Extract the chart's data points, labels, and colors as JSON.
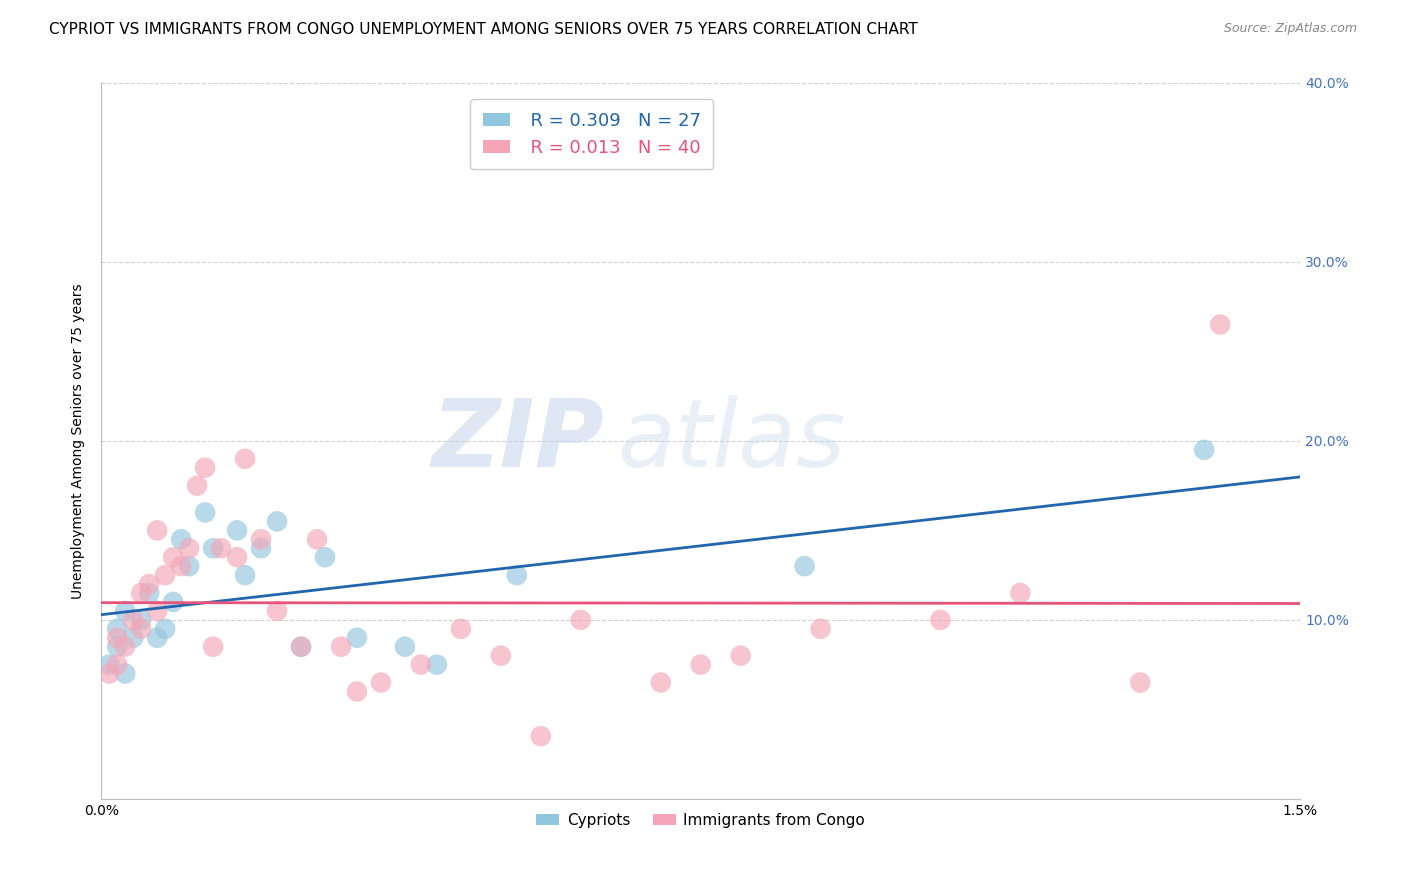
{
  "title": "CYPRIOT VS IMMIGRANTS FROM CONGO UNEMPLOYMENT AMONG SENIORS OVER 75 YEARS CORRELATION CHART",
  "source": "Source: ZipAtlas.com",
  "ylabel": "Unemployment Among Seniors over 75 years",
  "xmin": 0.0,
  "xmax": 1.5,
  "ymin": 0.0,
  "ymax": 40.0,
  "legend_r1": "R = 0.309",
  "legend_n1": "N = 27",
  "legend_r2": "R = 0.013",
  "legend_n2": "N = 40",
  "color_blue": "#92c5de",
  "color_pink": "#f4a6b8",
  "color_blue_line": "#2166ac",
  "color_pink_line": "#e8537a",
  "color_right_axis": "#4472C4",
  "watermark_zip": "ZIP",
  "watermark_atlas": "atlas",
  "cypriot_x": [
    0.01,
    0.02,
    0.02,
    0.03,
    0.03,
    0.04,
    0.05,
    0.06,
    0.07,
    0.08,
    0.09,
    0.1,
    0.11,
    0.13,
    0.14,
    0.17,
    0.18,
    0.2,
    0.22,
    0.25,
    0.28,
    0.32,
    0.38,
    0.42,
    0.52,
    0.88,
    1.38
  ],
  "cypriot_y": [
    7.5,
    8.5,
    9.5,
    7.0,
    10.5,
    9.0,
    10.0,
    11.5,
    9.0,
    9.5,
    11.0,
    14.5,
    13.0,
    16.0,
    14.0,
    15.0,
    12.5,
    14.0,
    15.5,
    8.5,
    13.5,
    9.0,
    8.5,
    7.5,
    12.5,
    13.0,
    19.5
  ],
  "congo_x": [
    0.01,
    0.02,
    0.02,
    0.03,
    0.04,
    0.05,
    0.05,
    0.06,
    0.07,
    0.07,
    0.08,
    0.09,
    0.1,
    0.11,
    0.12,
    0.13,
    0.14,
    0.15,
    0.17,
    0.18,
    0.2,
    0.22,
    0.25,
    0.27,
    0.3,
    0.32,
    0.35,
    0.4,
    0.45,
    0.5,
    0.55,
    0.6,
    0.7,
    0.75,
    0.8,
    0.9,
    1.05,
    1.15,
    1.3,
    1.4
  ],
  "congo_y": [
    7.0,
    7.5,
    9.0,
    8.5,
    10.0,
    9.5,
    11.5,
    12.0,
    10.5,
    15.0,
    12.5,
    13.5,
    13.0,
    14.0,
    17.5,
    18.5,
    8.5,
    14.0,
    13.5,
    19.0,
    14.5,
    10.5,
    8.5,
    14.5,
    8.5,
    6.0,
    6.5,
    7.5,
    9.5,
    8.0,
    3.5,
    10.0,
    6.5,
    7.5,
    8.0,
    9.5,
    10.0,
    11.5,
    6.5,
    26.5
  ],
  "title_fontsize": 11,
  "axis_label_fontsize": 10,
  "tick_fontsize": 10,
  "legend_fontsize": 13
}
